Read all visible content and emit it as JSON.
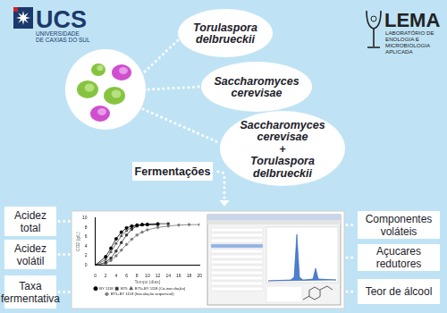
{
  "logos": {
    "ucs": {
      "title": "UCS",
      "subtitle_lines": [
        "UNIVERSIDADE",
        "DE CAXIAS DO SUL"
      ]
    },
    "lema": {
      "title": "LEMA",
      "subtitle_lines": [
        "LABORATÓRIO DE",
        "ENOLOGIA E",
        "MICROBIOLOGIA",
        "APLICADA"
      ]
    }
  },
  "organisms": [
    "Torulaspora delbrueckii",
    "Saccharomyces cerevisae",
    "Saccharomyces cerevisae + Torulaspora delbrueckii"
  ],
  "process": "Fermentações",
  "analyses_left": [
    "Acidez total",
    "Acidez volátil",
    "Taxa fermentativa"
  ],
  "analyses_right": [
    "Componentes voláteis",
    "Açucares redutores",
    "Teor de álcool"
  ],
  "chart_data": {
    "type": "line",
    "x_label": "Tempo (dias)",
    "y_label": "CO2 (g/L)",
    "x": [
      0,
      2,
      3,
      4,
      5,
      6,
      7,
      8,
      9,
      10,
      12,
      14,
      16,
      18,
      20
    ],
    "xlim": [
      0,
      20
    ],
    "xticks": [
      0,
      2,
      4,
      6,
      8,
      10,
      12,
      14,
      16,
      18,
      20
    ],
    "ylim": [
      0,
      10
    ],
    "yticks": [
      0,
      2,
      4,
      6,
      8,
      10
    ],
    "grid": false,
    "legend": "bottom",
    "series": [
      {
        "name": "BY 1118",
        "color": "#000000",
        "marker": "circle",
        "line_style": "solid",
        "values": [
          0,
          1.8,
          3.6,
          5.6,
          7.0,
          7.9,
          8.3,
          8.5,
          8.6,
          8.6,
          8.7,
          null,
          null,
          null,
          null
        ]
      },
      {
        "name": "BT5",
        "color": "#333333",
        "marker": "rect",
        "line_style": "solid",
        "values": [
          0,
          0.6,
          1.5,
          3.0,
          4.8,
          6.4,
          7.6,
          8.3,
          8.6,
          8.7,
          8.8,
          8.8,
          null,
          null,
          null
        ]
      },
      {
        "name": "BT5+BY 1118 (Co-inoculação)",
        "color": "#555555",
        "marker": "triangle",
        "line_style": "solid",
        "values": [
          0,
          1.2,
          2.8,
          4.6,
          6.2,
          7.3,
          8.0,
          8.4,
          8.5,
          8.6,
          8.6,
          null,
          null,
          null,
          null
        ]
      },
      {
        "name": "BT5+BY 1118 (Inoculação sequencial)",
        "color": "#777777",
        "marker": "rectRot",
        "line_style": "solid",
        "values": [
          0,
          0.4,
          1.0,
          2.0,
          3.2,
          4.4,
          5.5,
          6.4,
          7.0,
          7.5,
          8.0,
          8.3,
          8.5,
          8.6,
          8.6
        ]
      }
    ]
  }
}
